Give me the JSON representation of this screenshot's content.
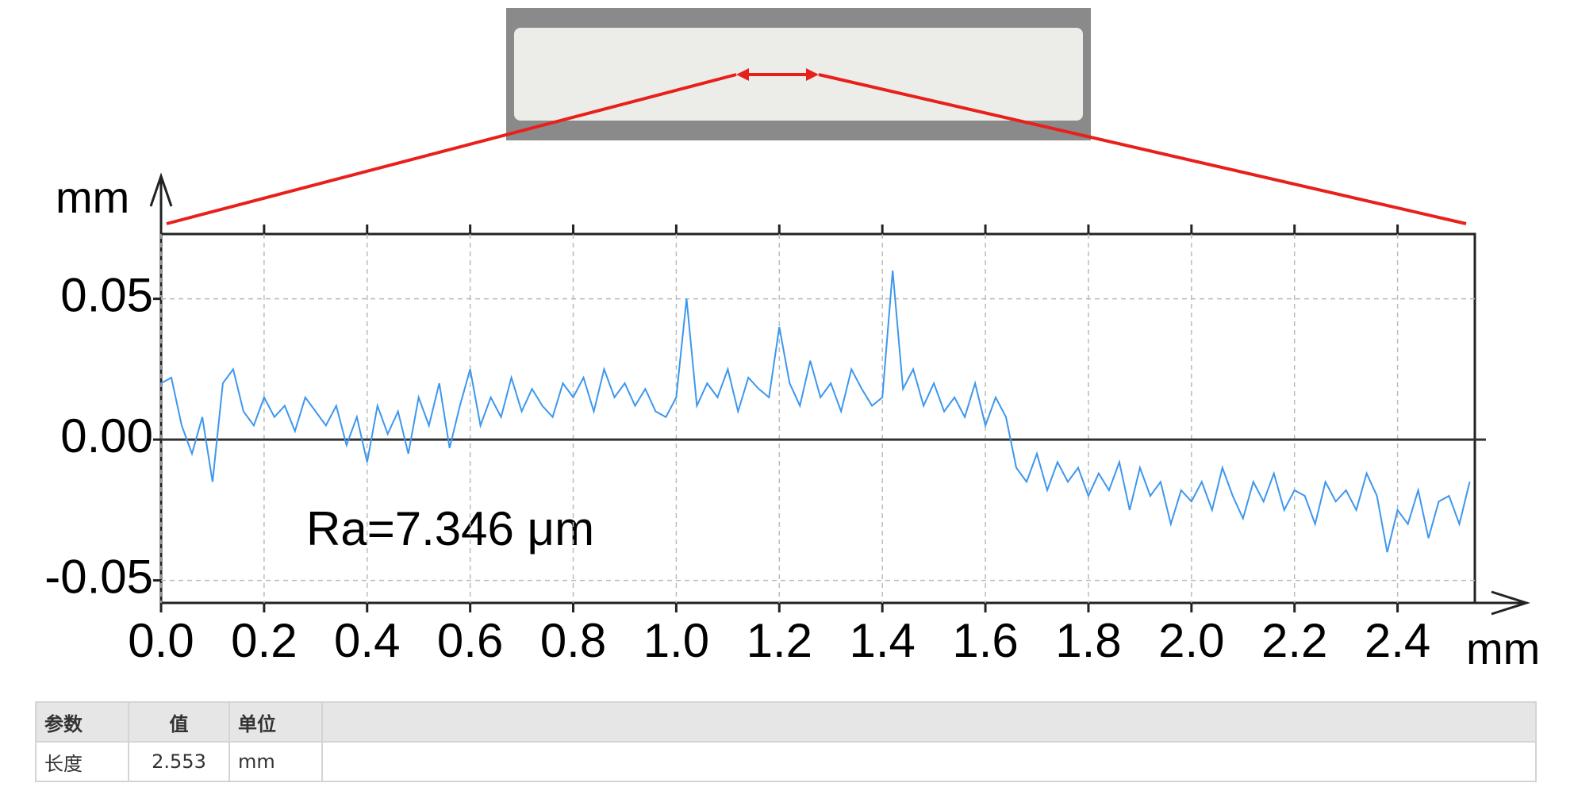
{
  "chart_data": {
    "type": "line",
    "x_label": "mm",
    "y_label": "mm",
    "annotation": "Ra=7.346 μm",
    "x": [
      0.0,
      0.02,
      0.04,
      0.06,
      0.08,
      0.1,
      0.12,
      0.14,
      0.16,
      0.18,
      0.2,
      0.22,
      0.24,
      0.26,
      0.28,
      0.3,
      0.32,
      0.34,
      0.36,
      0.38,
      0.4,
      0.42,
      0.44,
      0.46,
      0.48,
      0.5,
      0.52,
      0.54,
      0.56,
      0.58,
      0.6,
      0.62,
      0.64,
      0.66,
      0.68,
      0.7,
      0.72,
      0.74,
      0.76,
      0.78,
      0.8,
      0.82,
      0.84,
      0.86,
      0.88,
      0.9,
      0.92,
      0.94,
      0.96,
      0.98,
      1.0,
      1.02,
      1.04,
      1.06,
      1.08,
      1.1,
      1.12,
      1.14,
      1.16,
      1.18,
      1.2,
      1.22,
      1.24,
      1.26,
      1.28,
      1.3,
      1.32,
      1.34,
      1.36,
      1.38,
      1.4,
      1.42,
      1.44,
      1.46,
      1.48,
      1.5,
      1.52,
      1.54,
      1.56,
      1.58,
      1.6,
      1.62,
      1.64,
      1.66,
      1.68,
      1.7,
      1.72,
      1.74,
      1.76,
      1.78,
      1.8,
      1.82,
      1.84,
      1.86,
      1.88,
      1.9,
      1.92,
      1.94,
      1.96,
      1.98,
      2.0,
      2.02,
      2.04,
      2.06,
      2.08,
      2.1,
      2.12,
      2.14,
      2.16,
      2.18,
      2.2,
      2.22,
      2.24,
      2.26,
      2.28,
      2.3,
      2.32,
      2.34,
      2.36,
      2.38,
      2.4,
      2.42,
      2.44,
      2.46,
      2.48,
      2.5,
      2.52,
      2.54
    ],
    "values": [
      0.02,
      0.022,
      0.005,
      -0.005,
      0.008,
      -0.015,
      0.02,
      0.025,
      0.01,
      0.005,
      0.015,
      0.008,
      0.012,
      0.003,
      0.015,
      0.01,
      0.005,
      0.012,
      -0.002,
      0.008,
      -0.008,
      0.012,
      0.002,
      0.01,
      -0.005,
      0.015,
      0.005,
      0.02,
      -0.003,
      0.012,
      0.025,
      0.005,
      0.015,
      0.008,
      0.022,
      0.01,
      0.018,
      0.012,
      0.008,
      0.02,
      0.015,
      0.022,
      0.01,
      0.025,
      0.015,
      0.02,
      0.012,
      0.018,
      0.01,
      0.008,
      0.015,
      0.05,
      0.012,
      0.02,
      0.015,
      0.025,
      0.01,
      0.022,
      0.018,
      0.015,
      0.04,
      0.02,
      0.012,
      0.028,
      0.015,
      0.02,
      0.01,
      0.025,
      0.018,
      0.012,
      0.015,
      0.06,
      0.018,
      0.025,
      0.012,
      0.02,
      0.01,
      0.015,
      0.008,
      0.02,
      0.005,
      0.015,
      0.008,
      -0.01,
      -0.015,
      -0.005,
      -0.018,
      -0.008,
      -0.015,
      -0.01,
      -0.02,
      -0.012,
      -0.018,
      -0.008,
      -0.025,
      -0.01,
      -0.02,
      -0.015,
      -0.03,
      -0.018,
      -0.022,
      -0.015,
      -0.025,
      -0.01,
      -0.02,
      -0.028,
      -0.015,
      -0.022,
      -0.012,
      -0.025,
      -0.018,
      -0.02,
      -0.03,
      -0.015,
      -0.022,
      -0.018,
      -0.025,
      -0.012,
      -0.02,
      -0.04,
      -0.025,
      -0.03,
      -0.018,
      -0.035,
      -0.022,
      -0.02,
      -0.03,
      -0.015
    ],
    "color": "#3d97ee",
    "xlim": [
      0,
      2.55
    ],
    "ylim": [
      -0.058,
      0.073
    ],
    "xticks": [
      {
        "value": 0,
        "label": "0.0"
      },
      0.2,
      0.4,
      0.6,
      0.8,
      {
        "value": 1,
        "label": "1.0"
      },
      1.2,
      1.4,
      1.6,
      1.8,
      {
        "value": 2,
        "label": "2.0"
      },
      2.2,
      2.4
    ],
    "yticks": [
      -0.05,
      {
        "value": 0,
        "label": "0.00"
      },
      0.05
    ],
    "grid": true
  },
  "table": {
    "header": [
      "参数",
      "值",
      "单位"
    ],
    "rows": [
      [
        "长度",
        "2.553",
        "mm"
      ]
    ]
  }
}
